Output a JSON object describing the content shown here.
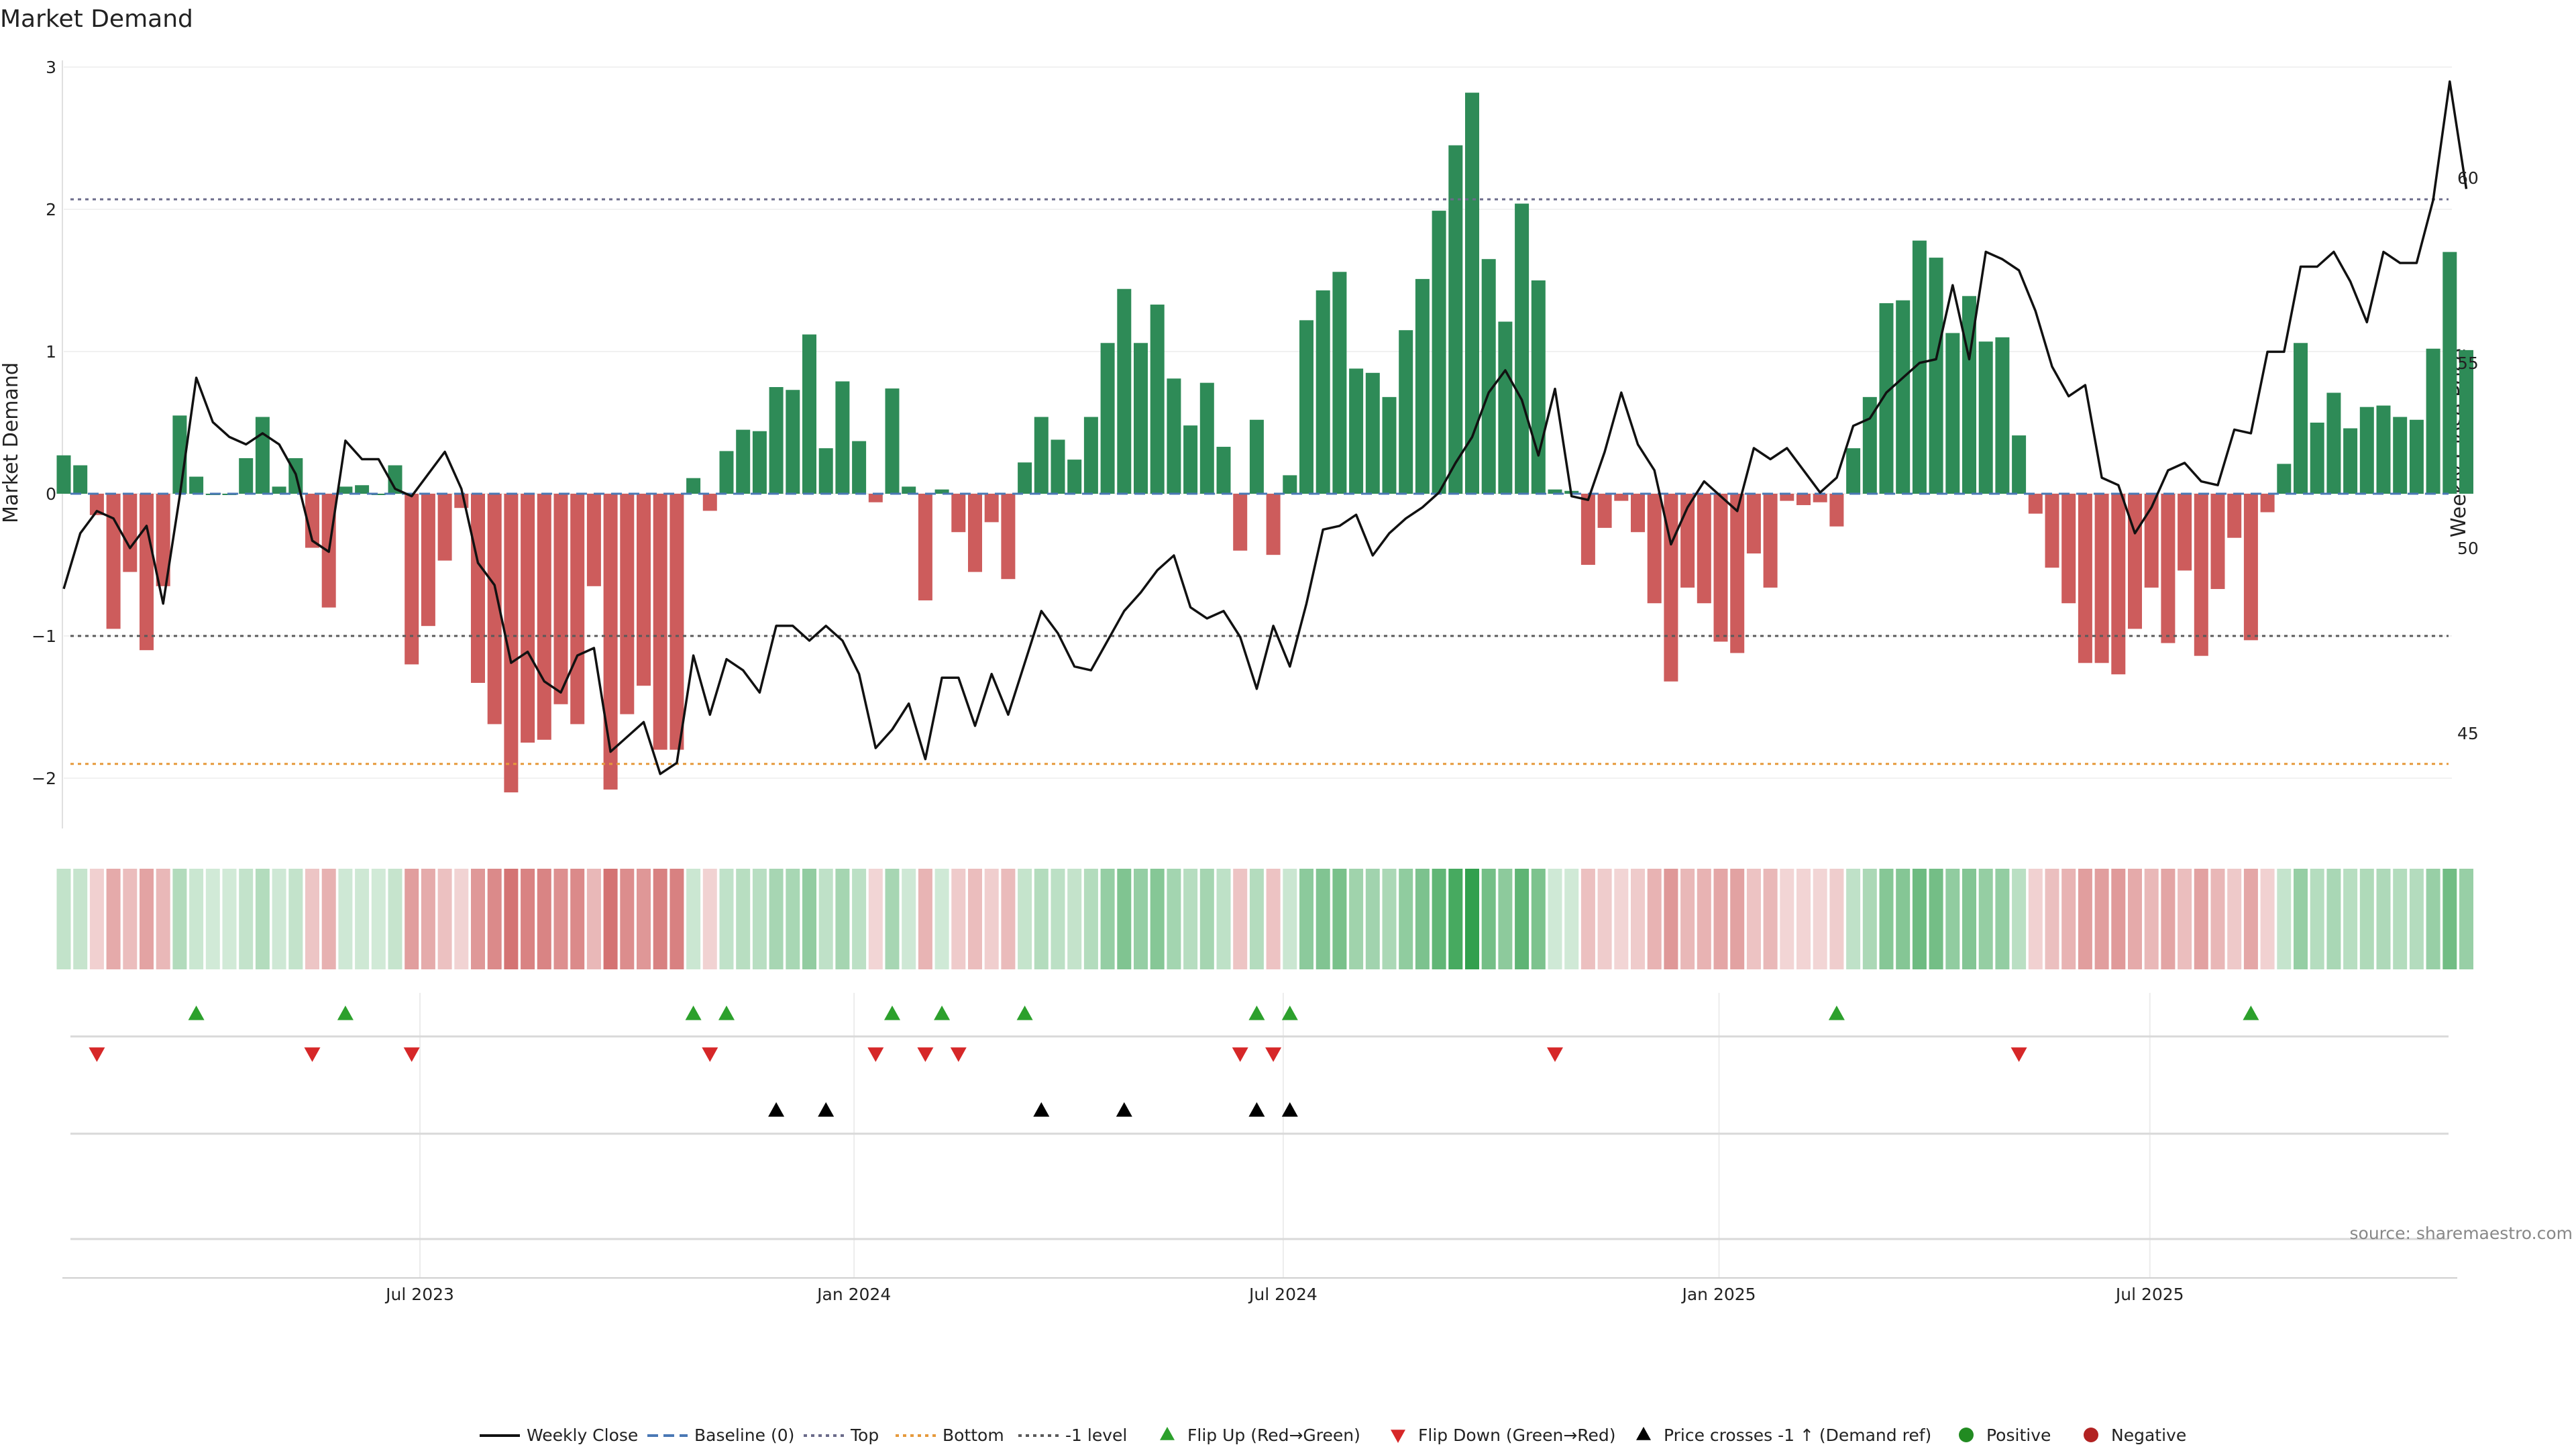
{
  "chart_data": {
    "type": "bar",
    "title": "Market Demand",
    "ylabel": "Market Demand",
    "y2label": "Weekly Close Price",
    "ylim": [
      -2.4,
      3.05
    ],
    "y2lim": [
      42.6,
      63.2
    ],
    "yticks": [
      "3",
      "2",
      "1",
      "0",
      "−1",
      "−2"
    ],
    "yticks_values": [
      3,
      2,
      1,
      0,
      -1,
      -2
    ],
    "y2ticks": [
      "60",
      "55",
      "50",
      "45"
    ],
    "y2ticks_values": [
      60,
      55,
      50,
      45
    ],
    "x_ticks": [
      {
        "label": "Jul 2023",
        "week": 21.5
      },
      {
        "label": "Jan 2024",
        "week": 47.7
      },
      {
        "label": "Jul 2024",
        "week": 73.6
      },
      {
        "label": "Jan 2025",
        "week": 99.9
      },
      {
        "label": "Jul 2025",
        "week": 125.9
      }
    ],
    "reference_lines": {
      "baseline": 0,
      "top": 2.07,
      "bottom": -1.9,
      "minus_one": -1.0
    },
    "demand": [
      0.27,
      0.2,
      -0.15,
      -0.95,
      -0.55,
      -1.1,
      -0.65,
      0.55,
      0.12,
      0.0,
      0.0,
      0.25,
      0.54,
      0.05,
      0.25,
      -0.38,
      -0.8,
      0.05,
      0.06,
      0.0,
      0.2,
      -1.2,
      -0.93,
      -0.47,
      -0.1,
      -1.33,
      -1.62,
      -2.1,
      -1.75,
      -1.73,
      -1.48,
      -1.62,
      -0.65,
      -2.08,
      -1.55,
      -1.35,
      -1.8,
      -1.8,
      0.11,
      -0.12,
      0.3,
      0.45,
      0.44,
      0.75,
      0.73,
      1.12,
      0.32,
      0.79,
      0.37,
      -0.06,
      0.74,
      0.05,
      -0.75,
      0.03,
      -0.27,
      -0.55,
      -0.2,
      -0.6,
      0.22,
      0.54,
      0.38,
      0.24,
      0.54,
      1.06,
      1.44,
      1.06,
      1.33,
      0.81,
      0.48,
      0.78,
      0.33,
      -0.4,
      0.52,
      -0.43,
      0.13,
      1.22,
      1.43,
      1.56,
      0.88,
      0.85,
      0.68,
      1.15,
      1.51,
      1.99,
      2.45,
      2.82,
      1.65,
      1.21,
      2.04,
      1.5,
      0.03,
      0.02,
      -0.5,
      -0.24,
      -0.05,
      -0.27,
      -0.77,
      -1.32,
      -0.66,
      -0.77,
      -1.04,
      -1.12,
      -0.42,
      -0.66,
      -0.05,
      -0.08,
      -0.06,
      -0.23,
      0.32,
      0.68,
      1.34,
      1.36,
      1.78,
      1.66,
      1.13,
      1.39,
      1.07,
      1.1,
      0.41,
      -0.14,
      -0.52,
      -0.77,
      -1.19,
      -1.19,
      -1.27,
      -0.95,
      -0.66,
      -1.05,
      -0.54,
      -1.14,
      -0.67,
      -0.31,
      -1.03,
      -0.13,
      0.21,
      1.06,
      0.5,
      0.71,
      0.46,
      0.61,
      0.62,
      0.54,
      0.52,
      1.02,
      1.7,
      1.01
    ],
    "price": [
      48.9,
      50.4,
      51.0,
      50.8,
      50.0,
      50.6,
      48.5,
      51.4,
      54.6,
      53.4,
      53.0,
      52.8,
      53.1,
      52.8,
      52.0,
      50.2,
      49.9,
      52.9,
      52.4,
      52.4,
      51.6,
      51.4,
      52.0,
      52.6,
      51.6,
      49.6,
      49.0,
      46.9,
      47.2,
      46.4,
      46.1,
      47.1,
      47.3,
      44.5,
      44.9,
      45.3,
      43.9,
      44.2,
      47.1,
      45.5,
      47.0,
      46.7,
      46.1,
      47.9,
      47.9,
      47.5,
      47.9,
      47.5,
      46.6,
      44.6,
      45.1,
      45.8,
      44.3,
      46.5,
      46.5,
      45.2,
      46.6,
      45.5,
      46.9,
      48.3,
      47.7,
      46.8,
      46.7,
      47.5,
      48.3,
      48.8,
      49.4,
      49.8,
      48.4,
      48.1,
      48.3,
      47.6,
      46.2,
      47.9,
      46.8,
      48.5,
      50.5,
      50.6,
      50.9,
      49.8,
      50.4,
      50.8,
      51.1,
      51.5,
      52.3,
      53.0,
      54.2,
      54.8,
      54.0,
      52.5,
      54.3,
      51.4,
      51.3,
      52.6,
      54.2,
      52.8,
      52.1,
      50.1,
      51.1,
      51.8,
      51.4,
      51.0,
      52.7,
      52.4,
      52.7,
      52.1,
      51.5,
      51.9,
      53.3,
      53.5,
      54.2,
      54.6,
      55.0,
      55.1,
      57.1,
      55.1,
      58.0,
      57.8,
      57.5,
      56.4,
      54.9,
      54.1,
      54.4,
      51.9,
      51.7,
      50.4,
      51.1,
      52.1,
      52.3,
      51.8,
      51.7,
      53.2,
      53.1,
      55.3,
      55.3,
      57.6,
      57.6,
      58.0,
      57.2,
      56.1,
      58.0,
      57.7,
      57.7,
      59.4,
      62.6,
      59.7
    ],
    "flip_up_weeks": [
      8,
      17,
      38,
      40,
      50,
      53,
      58,
      72,
      74,
      107,
      132
    ],
    "flip_down_weeks": [
      2,
      15,
      21,
      39,
      49,
      52,
      54,
      71,
      73,
      90,
      118
    ],
    "price_cross_weeks": [
      43,
      46,
      59,
      64,
      72,
      74
    ],
    "legend": [
      "Weekly Close",
      "Baseline (0)",
      "Top",
      "Bottom",
      "-1 level",
      "Flip Up (Red→Green)",
      "Flip Down (Green→Red)",
      "Price crosses -1 ↑ (Demand ref)",
      "Positive",
      "Negative"
    ],
    "source": "source: sharemaestro.com",
    "colors": {
      "positive": "#2e8b57",
      "negative": "#cd5c5c",
      "price": "#111111",
      "baseline": "#4a78b5",
      "top": "#6b6b8a",
      "bottom": "#e69a3c",
      "minus_one": "#5a5a5a",
      "flip_up": "#2ca02c",
      "flip_down": "#d62728",
      "cross": "#000000",
      "positive_dot": "#228b22",
      "negative_dot": "#b22222"
    }
  }
}
